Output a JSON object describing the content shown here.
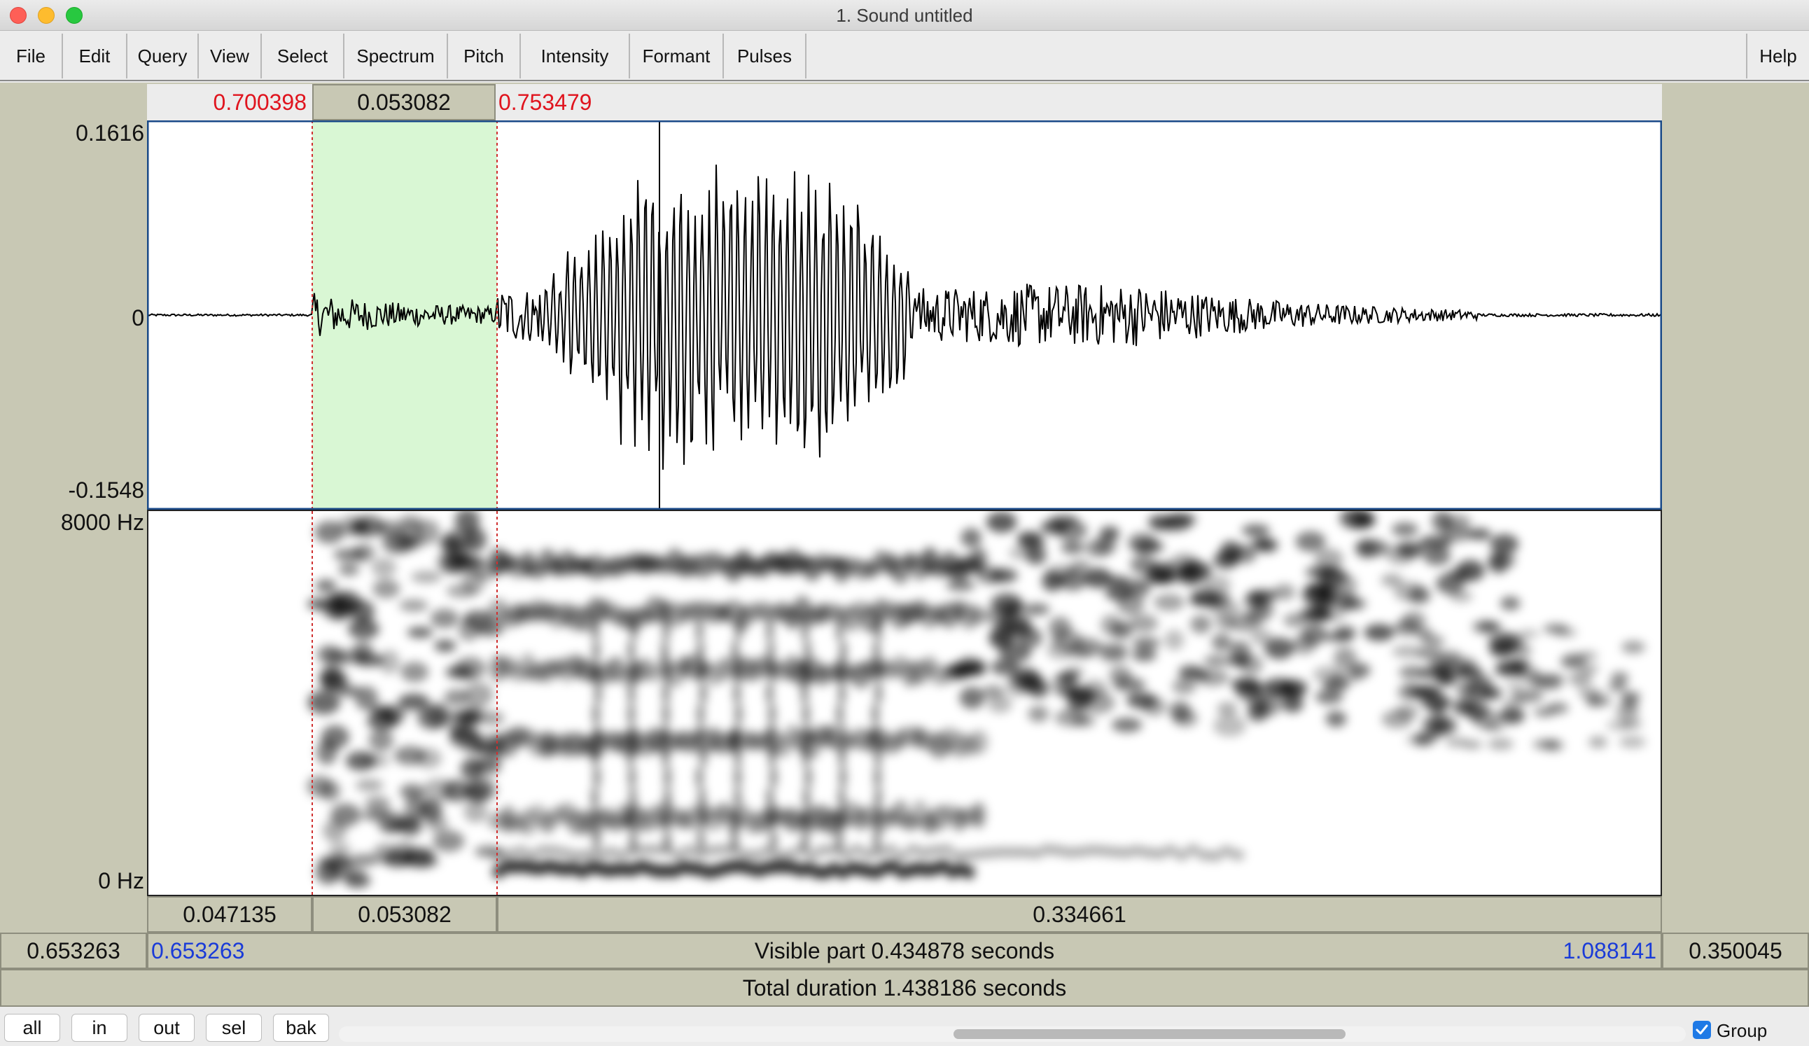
{
  "window": {
    "title": "1. Sound untitled",
    "traffic_lights": {
      "close": "#fe5f57",
      "minimize": "#febc2e",
      "zoom": "#28c840"
    }
  },
  "menu": {
    "items": [
      "File",
      "Edit",
      "Query",
      "View",
      "Select",
      "Spectrum",
      "Pitch",
      "Intensity",
      "Formant",
      "Pulses"
    ],
    "help": "Help"
  },
  "selection": {
    "start": "0.700398",
    "duration": "0.053082",
    "end": "0.753479"
  },
  "waveform": {
    "ymax": "0.1616",
    "zero": "0",
    "ymin": "-0.1548",
    "selection_color": "#d9f7d4"
  },
  "spectrogram": {
    "top": "8000 Hz",
    "bottom": "0 Hz"
  },
  "intervals": [
    "0.047135",
    "0.053082",
    "0.334661"
  ],
  "visible": {
    "left_outside": "0.653263",
    "start": "0.653263",
    "label": "Visible part 0.434878 seconds",
    "end": "1.088141",
    "right_outside": "0.350045"
  },
  "total": {
    "label": "Total duration 1.438186 seconds"
  },
  "zoom_buttons": [
    "all",
    "in",
    "out",
    "sel",
    "bak"
  ],
  "group": {
    "label": "Group",
    "checked": true,
    "check_color": "#1f7ae6"
  },
  "icons": {
    "checkbox": "check-icon"
  }
}
